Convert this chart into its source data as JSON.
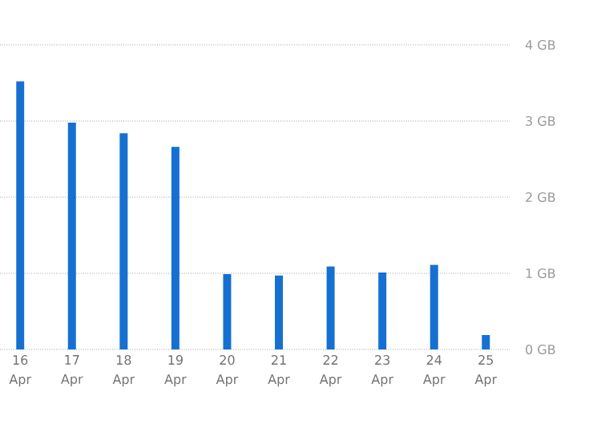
{
  "chart_data": {
    "type": "bar",
    "categories": [
      "16 Apr",
      "17 Apr",
      "18 Apr",
      "19 Apr",
      "20 Apr",
      "21 Apr",
      "22 Apr",
      "23 Apr",
      "24 Apr",
      "25 Apr"
    ],
    "values": [
      3.52,
      2.98,
      2.84,
      2.66,
      0.99,
      0.97,
      1.09,
      1.01,
      1.11,
      0.19
    ],
    "color": "#1670d2",
    "ylim": [
      0,
      4
    ],
    "yticks": [
      {
        "value": 0,
        "label": "0 GB"
      },
      {
        "value": 1,
        "label": "1 GB"
      },
      {
        "value": 2,
        "label": "2 GB"
      },
      {
        "value": 3,
        "label": "3 GB"
      },
      {
        "value": 4,
        "label": "4 GB"
      }
    ],
    "grid": "y"
  }
}
